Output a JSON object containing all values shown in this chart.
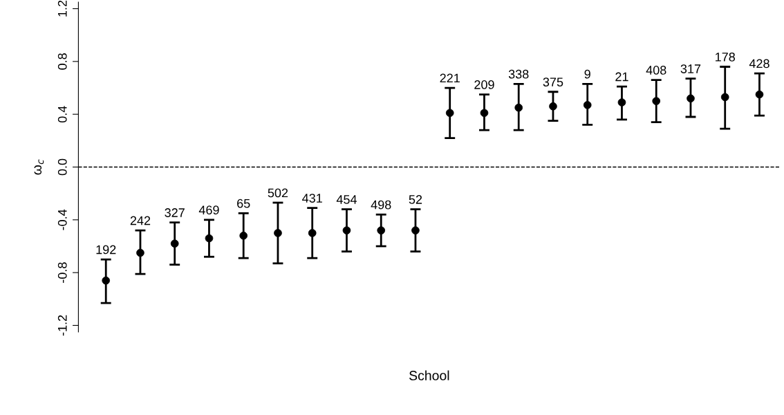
{
  "chart_data": {
    "type": "scatter",
    "xlabel": "School",
    "ylabel": "ω$_{c}$",
    "categories": [
      "192",
      "242",
      "327",
      "469",
      "65",
      "502",
      "431",
      "454",
      "498",
      "52",
      "221",
      "209",
      "338",
      "375",
      "9",
      "21",
      "408",
      "317",
      "178",
      "428"
    ],
    "series": [
      {
        "color": "#000000",
        "values": [
          -0.86,
          -0.65,
          -0.58,
          -0.54,
          -0.52,
          -0.5,
          -0.5,
          -0.48,
          -0.48,
          -0.48,
          0.41,
          0.41,
          0.45,
          0.46,
          0.47,
          0.49,
          0.5,
          0.52,
          0.53,
          0.55
        ],
        "errors": [
          [
            -1.03,
            -0.7
          ],
          [
            -0.81,
            -0.48
          ],
          [
            -0.74,
            -0.42
          ],
          [
            -0.68,
            -0.4
          ],
          [
            -0.69,
            -0.35
          ],
          [
            -0.73,
            -0.27
          ],
          [
            -0.69,
            -0.31
          ],
          [
            -0.64,
            -0.32
          ],
          [
            -0.6,
            -0.36
          ],
          [
            -0.64,
            -0.32
          ],
          [
            0.22,
            0.6
          ],
          [
            0.28,
            0.55
          ],
          [
            0.28,
            0.63
          ],
          [
            0.35,
            0.57
          ],
          [
            0.32,
            0.63
          ],
          [
            0.36,
            0.61
          ],
          [
            0.34,
            0.66
          ],
          [
            0.38,
            0.67
          ],
          [
            0.29,
            0.76
          ],
          [
            0.39,
            0.71
          ]
        ]
      }
    ],
    "ylim": [
      -1.25,
      1.25
    ],
    "yticks": [
      -1.2,
      -0.8,
      -0.4,
      {
        "value": 0,
        "label": "0.0"
      },
      0.4,
      0.8,
      1.2
    ],
    "tick_labels": "y",
    "marker": "circle",
    "grid": false,
    "legend": false,
    "ref_lines": [
      {
        "axis": "y",
        "value": 0,
        "line_style": "dashed",
        "color": "#000000"
      }
    ]
  }
}
